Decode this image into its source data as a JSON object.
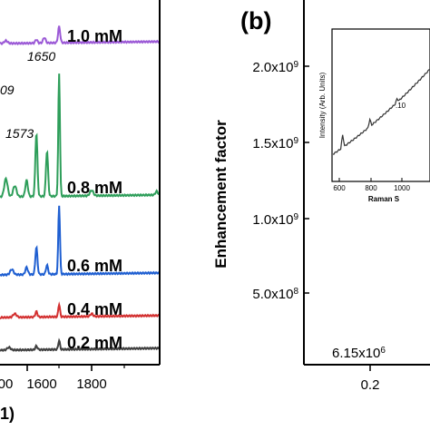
{
  "chart_data": [
    {
      "id": "a",
      "type": "line",
      "title": "",
      "xlabel_fragment": "1)",
      "ylabel": "",
      "xlim": [
        1450,
        1990
      ],
      "ylim": [
        0,
        10
      ],
      "x_ticks": [
        "1600",
        "1800"
      ],
      "x_ticks_partial": [
        "1600"
      ],
      "series": [
        {
          "name": "1.0 mM",
          "color": "#9b59d6"
        },
        {
          "name": "0.8 mM",
          "color": "#2e9e5a"
        },
        {
          "name": "0.6 mM",
          "color": "#1f5fd1"
        },
        {
          "name": "0.4 mM",
          "color": "#d33030"
        },
        {
          "name": "0.2 mM",
          "color": "#404040"
        }
      ],
      "peak_labels": [
        "1650",
        "09",
        "1573"
      ]
    },
    {
      "id": "b",
      "type": "scatter",
      "panel_label": "(b)",
      "ylabel": "Enhancement factor",
      "xlabel": "",
      "y_ticks": [
        "5.0x10^8",
        "1.0x10^9",
        "1.5x10^9",
        "2.0x10^9"
      ],
      "x_ticks": [
        "0.2"
      ],
      "annotation": "6.15x10^6",
      "inset": {
        "ylabel": "Intensity (Arb. Units)",
        "xlabel": "Raman S",
        "x_ticks": [
          "600",
          "800",
          "1000"
        ],
        "note": ".10"
      }
    }
  ]
}
